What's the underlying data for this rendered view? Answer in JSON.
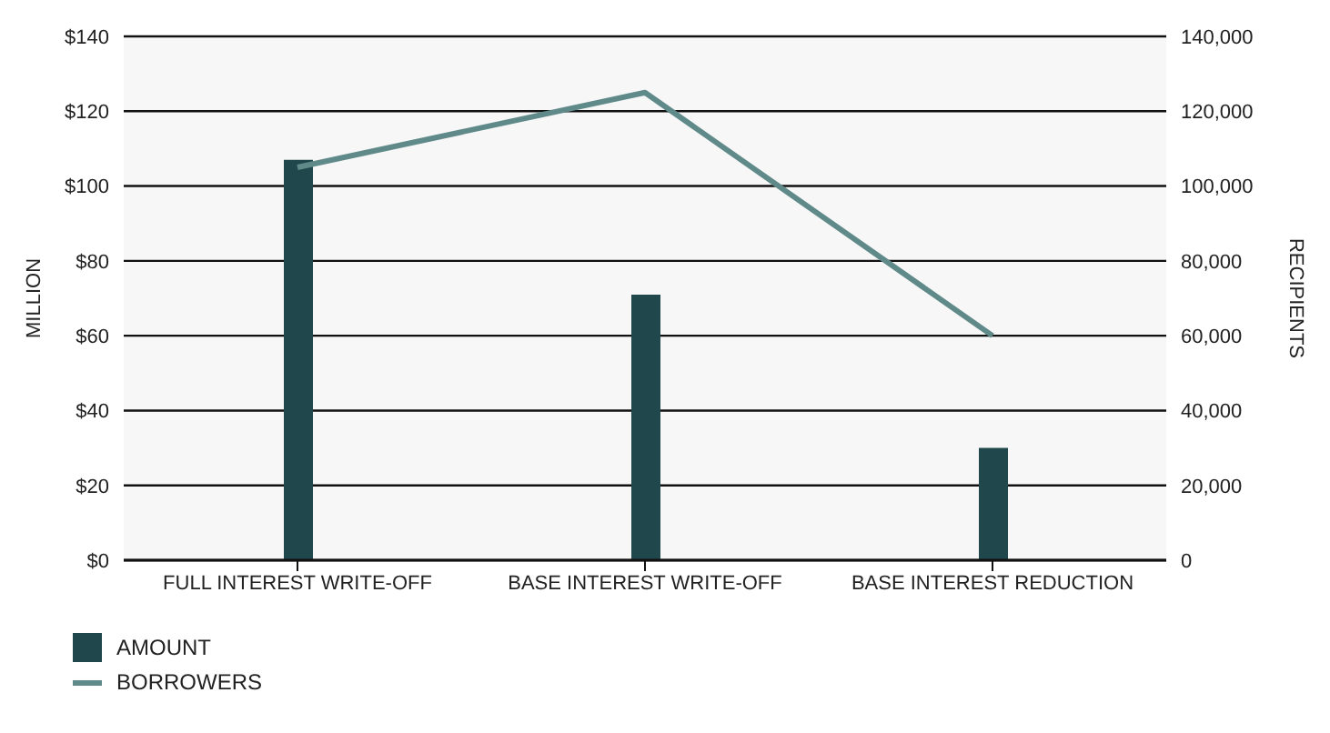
{
  "chart_data": {
    "type": "bar",
    "categories": [
      "FULL INTEREST WRITE-OFF",
      "BASE INTEREST WRITE-OFF",
      "BASE INTEREST REDUCTION"
    ],
    "ylabel": "MILLION",
    "y2label": "RECIPIENTS",
    "series": [
      {
        "name": "AMOUNT",
        "color": "#20474b",
        "values": [
          107,
          71,
          30
        ]
      },
      {
        "name": "BORROWERS",
        "type": "line",
        "axis": "y2",
        "color": "#5f8a89",
        "values": [
          105000,
          125000,
          60000
        ]
      }
    ],
    "ylim": [
      0,
      140
    ],
    "yticks": [
      {
        "value": 0,
        "label": "$0"
      },
      {
        "value": 20,
        "label": "$20"
      },
      {
        "value": 40,
        "label": "$40"
      },
      {
        "value": 60,
        "label": "$60"
      },
      {
        "value": 80,
        "label": "$80"
      },
      {
        "value": 100,
        "label": "$100"
      },
      {
        "value": 120,
        "label": "$120"
      },
      {
        "value": 140,
        "label": "$140"
      }
    ],
    "y2lim": [
      0,
      140000
    ],
    "y2ticks": [
      {
        "value": 0,
        "label": "0"
      },
      {
        "value": 20000,
        "label": "20,000"
      },
      {
        "value": 40000,
        "label": "40,000"
      },
      {
        "value": 60000,
        "label": "60,000"
      },
      {
        "value": 80000,
        "label": "80,000"
      },
      {
        "value": 100000,
        "label": "100,000"
      },
      {
        "value": 120000,
        "label": "120,000"
      },
      {
        "value": 140000,
        "label": "140,000"
      }
    ],
    "grid": "y",
    "legend": "bottom left",
    "marker": "none",
    "line_style": "solid"
  }
}
